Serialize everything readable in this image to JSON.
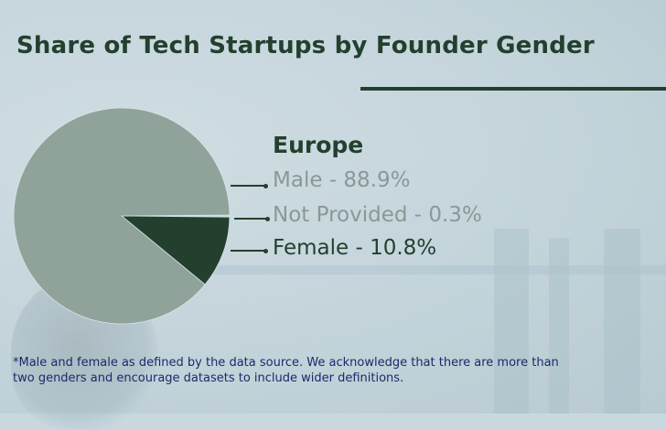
{
  "title": "Share of Tech Startups by Founder Gender",
  "region": "Europe",
  "footnote": "*Male and female as defined by the data source. We acknowledge that there are more than two genders and encourage datasets to include wider definitions.",
  "chart_data": {
    "type": "pie",
    "title": "Share of Tech Startups by Founder Gender",
    "subtitle": "Europe",
    "slices": [
      {
        "label": "Male - 88.9%",
        "category": "Male",
        "value": 88.9,
        "color": "#8fa39a",
        "text_color": "#8a9896"
      },
      {
        "label": "Not Provided - 0.3%",
        "category": "Not Provided",
        "value": 0.3,
        "color": "#c9d8df",
        "text_color": "#8a9896"
      },
      {
        "label": "Female - 10.8%",
        "category": "Female",
        "value": 10.8,
        "color": "#23402f",
        "text_color": "#23402f"
      }
    ],
    "legend_position": "right"
  },
  "colors": {
    "dark_green": "#23402f",
    "male_slice": "#8fa39a",
    "muted_label": "#8a9896",
    "footnote": "#1a2a6b"
  }
}
